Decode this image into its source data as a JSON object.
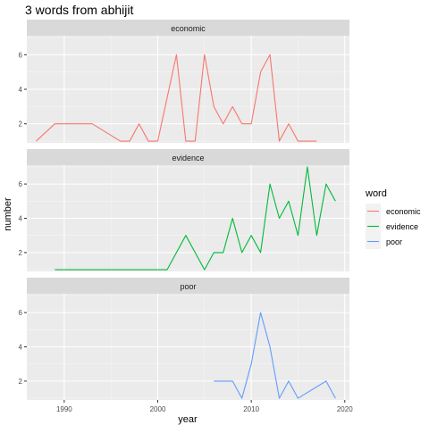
{
  "chart_data": {
    "type": "line",
    "title": "3 words from abhijit",
    "xlabel": "year",
    "ylabel": "number",
    "xlim": [
      1986,
      2020.5
    ],
    "x_ticks": [
      1990,
      2000,
      2010,
      2020
    ],
    "y_ticks": [
      2,
      4,
      6
    ],
    "legend": {
      "title": "word",
      "position": "right"
    },
    "panels": [
      {
        "name": "economic",
        "color": "#F8766D",
        "ylim": [
          0.9,
          7.1
        ],
        "points": [
          [
            1987,
            1
          ],
          [
            1989,
            2
          ],
          [
            1990,
            2
          ],
          [
            1993,
            2
          ],
          [
            1996,
            1
          ],
          [
            1997,
            1
          ],
          [
            1998,
            2
          ],
          [
            1999,
            1
          ],
          [
            2000,
            1
          ],
          [
            2002,
            6
          ],
          [
            2003,
            1
          ],
          [
            2004,
            1
          ],
          [
            2005,
            6
          ],
          [
            2006,
            3
          ],
          [
            2007,
            2
          ],
          [
            2008,
            3
          ],
          [
            2009,
            2
          ],
          [
            2010,
            2
          ],
          [
            2011,
            5
          ],
          [
            2012,
            6
          ],
          [
            2013,
            1
          ],
          [
            2014,
            2
          ],
          [
            2015,
            1
          ],
          [
            2016,
            1
          ],
          [
            2017,
            1
          ]
        ]
      },
      {
        "name": "evidence",
        "color": "#00BA38",
        "ylim": [
          0.9,
          7.1
        ],
        "points": [
          [
            1989,
            1
          ],
          [
            2001,
            1
          ],
          [
            2003,
            3
          ],
          [
            2005,
            1
          ],
          [
            2006,
            2
          ],
          [
            2007,
            2
          ],
          [
            2008,
            4
          ],
          [
            2009,
            2
          ],
          [
            2010,
            3
          ],
          [
            2011,
            2
          ],
          [
            2012,
            6
          ],
          [
            2013,
            4
          ],
          [
            2014,
            5
          ],
          [
            2015,
            3
          ],
          [
            2016,
            7
          ],
          [
            2017,
            3
          ],
          [
            2018,
            6
          ],
          [
            2019,
            5
          ]
        ]
      },
      {
        "name": "poor",
        "color": "#619CFF",
        "ylim": [
          0.9,
          7.1
        ],
        "points": [
          [
            2006,
            2
          ],
          [
            2008,
            2
          ],
          [
            2009,
            1
          ],
          [
            2010,
            3
          ],
          [
            2011,
            6
          ],
          [
            2012,
            4
          ],
          [
            2013,
            1
          ],
          [
            2014,
            2
          ],
          [
            2015,
            1
          ],
          [
            2018,
            2
          ],
          [
            2019,
            1
          ]
        ]
      }
    ]
  }
}
